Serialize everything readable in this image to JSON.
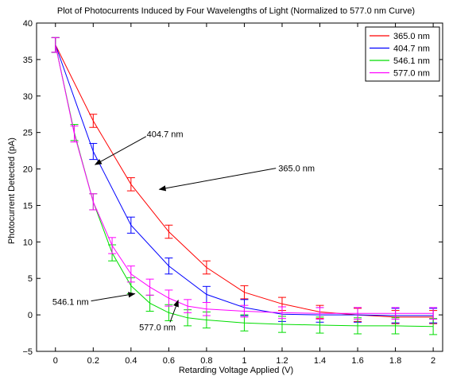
{
  "chart_data": {
    "type": "line",
    "title": "Plot of Photocurrents Induced by Four Wavelengths of Light (Normalized to 577.0 nm Curve)",
    "xlabel": "Retarding Voltage Applied (V)",
    "ylabel": "Photocurrent Detected (pA)",
    "xlim": [
      -0.1,
      2.05
    ],
    "ylim": [
      -5,
      40
    ],
    "xticks": [
      0,
      0.2,
      0.4,
      0.6,
      0.8,
      1,
      1.2,
      1.4,
      1.6,
      1.8,
      2
    ],
    "xtick_labels": [
      "0",
      "0.2",
      "0.4",
      "0.6",
      "0.8",
      "1",
      "1.2",
      "1.4",
      "1.6",
      "1.8",
      "2"
    ],
    "yticks": [
      -5,
      0,
      5,
      10,
      15,
      20,
      25,
      30,
      35,
      40
    ],
    "ytick_labels": [
      "−5",
      "0",
      "5",
      "10",
      "15",
      "20",
      "25",
      "30",
      "35",
      "40"
    ],
    "grid": false,
    "legend_position": "top-right",
    "series": [
      {
        "name": "365.0 nm",
        "color": "#ff0000",
        "x": [
          0,
          0.2,
          0.4,
          0.6,
          0.8,
          1.0,
          1.2,
          1.4,
          1.6,
          1.8,
          2.0
        ],
        "y": [
          37.0,
          26.6,
          17.9,
          11.4,
          6.5,
          3.1,
          1.5,
          0.4,
          0.0,
          -0.3,
          -0.3
        ],
        "err": [
          1.0,
          0.9,
          0.9,
          0.9,
          0.9,
          0.9,
          0.9,
          0.9,
          0.9,
          0.9,
          0.9
        ]
      },
      {
        "name": "404.7 nm",
        "color": "#0000ff",
        "x": [
          0,
          0.2,
          0.4,
          0.6,
          0.8,
          1.0,
          1.2,
          1.4,
          1.6,
          1.8,
          2.0
        ],
        "y": [
          37.0,
          22.4,
          12.3,
          6.7,
          2.8,
          1.0,
          0.1,
          0.0,
          0.0,
          -0.1,
          -0.1
        ],
        "err": [
          1.0,
          1.1,
          1.1,
          1.1,
          1.1,
          1.1,
          1.0,
          1.0,
          1.0,
          1.0,
          1.0
        ]
      },
      {
        "name": "546.1 nm",
        "color": "#00dd00",
        "x": [
          0,
          0.1,
          0.2,
          0.3,
          0.4,
          0.5,
          0.6,
          0.7,
          0.8,
          1.0,
          1.2,
          1.4,
          1.6,
          1.8,
          2.0
        ],
        "y": [
          37.0,
          25.0,
          15.5,
          8.5,
          4.0,
          1.6,
          0.3,
          -0.4,
          -0.7,
          -1.1,
          -1.3,
          -1.4,
          -1.5,
          -1.5,
          -1.6
        ],
        "err": [
          1.0,
          1.1,
          1.1,
          1.1,
          1.1,
          1.1,
          1.1,
          1.1,
          1.1,
          1.1,
          1.1,
          1.1,
          1.1,
          1.1,
          1.1
        ]
      },
      {
        "name": "577.0 nm",
        "color": "#ff00ff",
        "x": [
          0,
          0.1,
          0.2,
          0.3,
          0.4,
          0.5,
          0.6,
          0.7,
          0.8,
          1.0,
          1.2,
          1.4,
          1.6,
          1.8,
          2.0
        ],
        "y": [
          37.0,
          24.8,
          15.5,
          9.5,
          5.6,
          3.8,
          2.3,
          1.2,
          0.8,
          0.5,
          0.3,
          0.2,
          0.2,
          0.2,
          0.2
        ],
        "err": [
          1.0,
          1.1,
          1.1,
          1.1,
          1.1,
          1.1,
          1.1,
          0.9,
          0.9,
          0.8,
          0.8,
          0.8,
          0.8,
          0.8,
          0.8
        ]
      }
    ],
    "annotations": [
      {
        "text": "404.7 nm",
        "text_at": [
          0.58,
          24.8
        ],
        "arrow_to": [
          0.21,
          20.6
        ],
        "anchor": "middle"
      },
      {
        "text": "365.0 nm",
        "text_at": [
          1.18,
          20.1
        ],
        "arrow_to": [
          0.55,
          17.2
        ],
        "anchor": "start"
      },
      {
        "text": "546.1 nm",
        "text_at": [
          0.08,
          1.8
        ],
        "arrow_to": [
          0.42,
          2.9
        ],
        "anchor": "middle"
      },
      {
        "text": "577.0 nm",
        "text_at": [
          0.54,
          -1.7
        ],
        "arrow_to": [
          0.65,
          2.0
        ],
        "anchor": "middle"
      }
    ]
  }
}
